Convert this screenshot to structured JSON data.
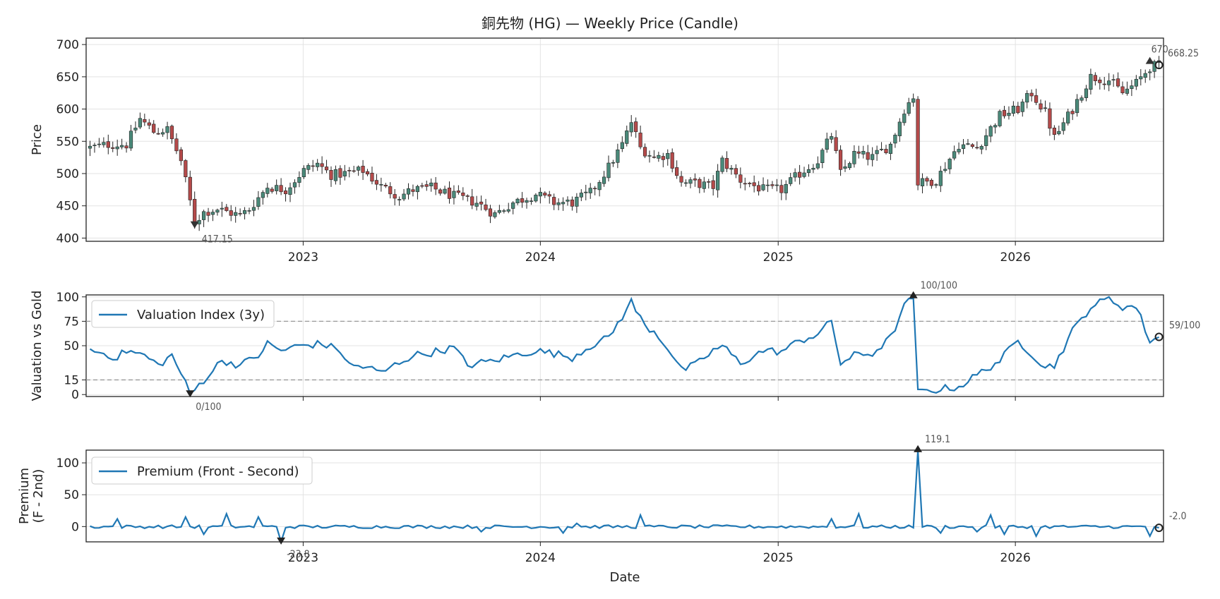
{
  "chart_data": [
    {
      "type": "candlestick",
      "title": "銅先物 (HG) — Weekly Price (Candle)",
      "ylabel": "Price",
      "ylim": [
        395,
        710
      ],
      "yticks": [
        400,
        450,
        500,
        550,
        600,
        650,
        700
      ],
      "xticks": [
        "2023",
        "2024",
        "2025",
        "2026"
      ],
      "x_range": [
        "2022-02",
        "2026-08"
      ],
      "grid": true,
      "colors": {
        "up": "#4a8a7a",
        "down": "#b54a4a",
        "wick": "#222222"
      },
      "annotations": [
        {
          "label": "417.15",
          "date": "2022-07-18",
          "value": 417.15,
          "marker": "min"
        },
        {
          "label": "670",
          "date": "2026-07-27",
          "value": 670,
          "marker": "max"
        },
        {
          "label": "668.25",
          "date": "2026-08-10",
          "value": 668.25,
          "marker": "last"
        }
      ],
      "anchors": [
        [
          "2022-02-07",
          540
        ],
        [
          "2022-03-07",
          545
        ],
        [
          "2022-04-04",
          545
        ],
        [
          "2022-04-25",
          585
        ],
        [
          "2022-05-16",
          565
        ],
        [
          "2022-06-06",
          568
        ],
        [
          "2022-06-27",
          520
        ],
        [
          "2022-07-18",
          425
        ],
        [
          "2022-08-01",
          440
        ],
        [
          "2022-08-22",
          445
        ],
        [
          "2022-09-26",
          435
        ],
        [
          "2022-10-10",
          445
        ],
        [
          "2022-11-07",
          480
        ],
        [
          "2022-12-05",
          475
        ],
        [
          "2023-01-02",
          505
        ],
        [
          "2023-01-23",
          515
        ],
        [
          "2023-02-13",
          498
        ],
        [
          "2023-03-06",
          500
        ],
        [
          "2023-04-03",
          505
        ],
        [
          "2023-05-01",
          480
        ],
        [
          "2023-05-29",
          465
        ],
        [
          "2023-06-19",
          475
        ],
        [
          "2023-07-17",
          478
        ],
        [
          "2023-08-21",
          465
        ],
        [
          "2023-09-25",
          455
        ],
        [
          "2023-10-23",
          437
        ],
        [
          "2023-11-20",
          455
        ],
        [
          "2023-12-25",
          468
        ],
        [
          "2024-01-22",
          455
        ],
        [
          "2024-02-19",
          455
        ],
        [
          "2024-03-18",
          470
        ],
        [
          "2024-04-15",
          510
        ],
        [
          "2024-05-06",
          545
        ],
        [
          "2024-05-20",
          580
        ],
        [
          "2024-06-03",
          540
        ],
        [
          "2024-06-24",
          525
        ],
        [
          "2024-07-15",
          530
        ],
        [
          "2024-08-05",
          485
        ],
        [
          "2024-08-26",
          485
        ],
        [
          "2024-09-23",
          480
        ],
        [
          "2024-10-07",
          520
        ],
        [
          "2024-11-04",
          490
        ],
        [
          "2024-12-09",
          475
        ],
        [
          "2025-01-06",
          475
        ],
        [
          "2025-02-03",
          500
        ],
        [
          "2025-03-03",
          520
        ],
        [
          "2025-03-24",
          560
        ],
        [
          "2025-04-07",
          500
        ],
        [
          "2025-04-28",
          530
        ],
        [
          "2025-05-26",
          525
        ],
        [
          "2025-06-23",
          545
        ],
        [
          "2025-07-14",
          600
        ],
        [
          "2025-07-28",
          620
        ],
        [
          "2025-08-04",
          485
        ],
        [
          "2025-09-01",
          490
        ],
        [
          "2025-10-06",
          545
        ],
        [
          "2025-11-03",
          540
        ],
        [
          "2025-12-08",
          590
        ],
        [
          "2026-01-05",
          600
        ],
        [
          "2026-01-26",
          625
        ],
        [
          "2026-02-16",
          595
        ],
        [
          "2026-03-02",
          555
        ],
        [
          "2026-03-30",
          600
        ],
        [
          "2026-04-27",
          650
        ],
        [
          "2026-05-25",
          645
        ],
        [
          "2026-06-15",
          625
        ],
        [
          "2026-07-06",
          640
        ],
        [
          "2026-07-27",
          665
        ],
        [
          "2026-08-10",
          668
        ]
      ]
    },
    {
      "type": "line",
      "ylabel": "Valuation vs Gold",
      "ylim": [
        -2,
        102
      ],
      "yticks": [
        0,
        15,
        50,
        75,
        100
      ],
      "reference_lines": [
        15,
        75
      ],
      "grid": true,
      "legend": {
        "position": "upper-left"
      },
      "series": [
        {
          "name": "Valuation Index (3y)",
          "color": "#1f77b4"
        }
      ],
      "annotations": [
        {
          "label": "100/100",
          "date": "2025-07-28",
          "value": 100,
          "marker": "max"
        },
        {
          "label": "0/100",
          "date": "2022-07-11",
          "value": 0,
          "marker": "min"
        },
        {
          "label": "59/100",
          "date": "2026-08-10",
          "value": 59,
          "marker": "last"
        }
      ],
      "anchors": [
        [
          "2022-02-07",
          46
        ],
        [
          "2022-02-28",
          42
        ],
        [
          "2022-03-21",
          38
        ],
        [
          "2022-04-04",
          45
        ],
        [
          "2022-05-02",
          40
        ],
        [
          "2022-05-23",
          30
        ],
        [
          "2022-06-13",
          40
        ],
        [
          "2022-06-27",
          22
        ],
        [
          "2022-07-11",
          0
        ],
        [
          "2022-08-01",
          15
        ],
        [
          "2022-08-29",
          35
        ],
        [
          "2022-09-26",
          30
        ],
        [
          "2022-10-24",
          40
        ],
        [
          "2022-11-07",
          52
        ],
        [
          "2022-11-28",
          45
        ],
        [
          "2022-12-26",
          50
        ],
        [
          "2023-01-30",
          52
        ],
        [
          "2023-02-27",
          45
        ],
        [
          "2023-03-13",
          30
        ],
        [
          "2023-04-10",
          28
        ],
        [
          "2023-05-01",
          22
        ],
        [
          "2023-05-29",
          33
        ],
        [
          "2023-06-19",
          40
        ],
        [
          "2023-07-17",
          43
        ],
        [
          "2023-08-21",
          48
        ],
        [
          "2023-09-11",
          30
        ],
        [
          "2023-10-23",
          35
        ],
        [
          "2023-11-20",
          40
        ],
        [
          "2023-12-25",
          45
        ],
        [
          "2024-01-22",
          42
        ],
        [
          "2024-02-19",
          38
        ],
        [
          "2024-03-18",
          50
        ],
        [
          "2024-04-15",
          58
        ],
        [
          "2024-05-06",
          80
        ],
        [
          "2024-05-20",
          95
        ],
        [
          "2024-06-10",
          70
        ],
        [
          "2024-06-24",
          65
        ],
        [
          "2024-07-15",
          48
        ],
        [
          "2024-08-05",
          25
        ],
        [
          "2024-08-26",
          30
        ],
        [
          "2024-09-23",
          45
        ],
        [
          "2024-10-07",
          50
        ],
        [
          "2024-11-04",
          32
        ],
        [
          "2024-12-09",
          45
        ],
        [
          "2025-01-06",
          44
        ],
        [
          "2025-02-03",
          55
        ],
        [
          "2025-03-03",
          62
        ],
        [
          "2025-03-24",
          75
        ],
        [
          "2025-04-07",
          32
        ],
        [
          "2025-04-28",
          40
        ],
        [
          "2025-05-26",
          42
        ],
        [
          "2025-06-23",
          58
        ],
        [
          "2025-07-14",
          90
        ],
        [
          "2025-07-28",
          100
        ],
        [
          "2025-08-04",
          2
        ],
        [
          "2025-09-01",
          5
        ],
        [
          "2025-10-06",
          8
        ],
        [
          "2025-11-03",
          20
        ],
        [
          "2025-12-08",
          35
        ],
        [
          "2026-01-05",
          55
        ],
        [
          "2026-01-26",
          42
        ],
        [
          "2026-02-16",
          28
        ],
        [
          "2026-03-02",
          30
        ],
        [
          "2026-03-30",
          65
        ],
        [
          "2026-04-27",
          90
        ],
        [
          "2026-05-25",
          98
        ],
        [
          "2026-06-15",
          90
        ],
        [
          "2026-07-06",
          90
        ],
        [
          "2026-07-27",
          55
        ],
        [
          "2026-08-10",
          59
        ]
      ]
    },
    {
      "type": "line",
      "ylabel": "Premium\n(F - 2nd)",
      "xlabel": "Date",
      "ylim": [
        -24,
        120
      ],
      "yticks": [
        0,
        50,
        100
      ],
      "xticks": [
        "2023",
        "2024",
        "2025",
        "2026"
      ],
      "grid": true,
      "legend": {
        "position": "upper-left"
      },
      "series": [
        {
          "name": "Premium (Front - Second)",
          "color": "#1f77b4"
        }
      ],
      "annotations": [
        {
          "label": "119.1",
          "date": "2025-08-04",
          "value": 119.1,
          "marker": "max"
        },
        {
          "label": "-23.8",
          "date": "2022-11-28",
          "value": -23.8,
          "marker": "min"
        },
        {
          "label": "-2.0",
          "date": "2026-08-10",
          "value": -2.0,
          "marker": "last"
        }
      ],
      "spikes": [
        [
          "2022-03-21",
          12
        ],
        [
          "2022-07-04",
          15
        ],
        [
          "2022-08-01",
          -12
        ],
        [
          "2022-09-05",
          20
        ],
        [
          "2022-10-24",
          15
        ],
        [
          "2022-11-28",
          -23.8
        ],
        [
          "2023-10-02",
          -8
        ],
        [
          "2024-02-05",
          -10
        ],
        [
          "2024-02-26",
          5
        ],
        [
          "2024-06-03",
          18
        ],
        [
          "2025-03-24",
          12
        ],
        [
          "2025-05-05",
          20
        ],
        [
          "2025-08-04",
          119.1
        ],
        [
          "2025-09-08",
          -10
        ],
        [
          "2025-11-03",
          -8
        ],
        [
          "2025-11-24",
          18
        ],
        [
          "2025-12-15",
          -12
        ],
        [
          "2026-02-02",
          -15
        ],
        [
          "2026-07-27",
          -15
        ]
      ]
    }
  ]
}
